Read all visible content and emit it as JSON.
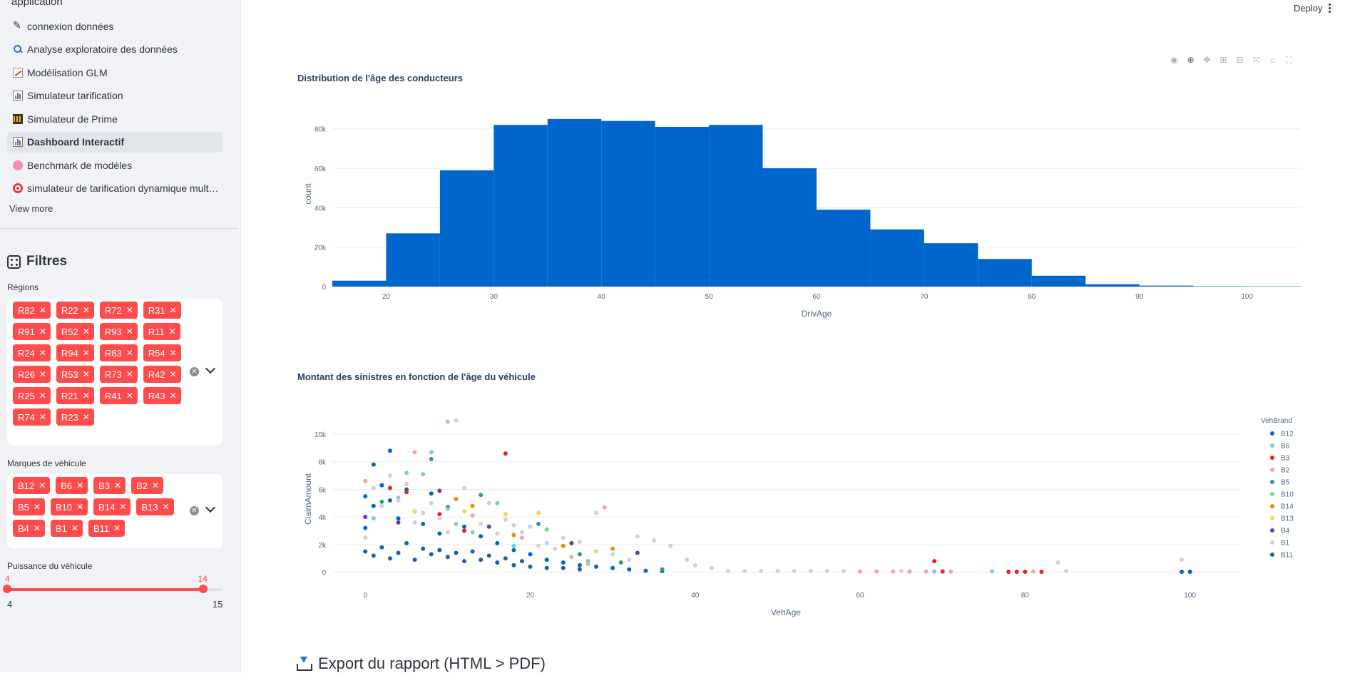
{
  "sidebar": {
    "app_name": "application",
    "nav": [
      {
        "label": "connexion données",
        "icon": "pen-icon"
      },
      {
        "label": "Analyse exploratoire des données",
        "icon": "magnifier-icon"
      },
      {
        "label": "Modélisation GLM",
        "icon": "trend-chart-icon"
      },
      {
        "label": "Simulateur tarification",
        "icon": "bar-chart-icon"
      },
      {
        "label": "Simulateur de Prime",
        "icon": "abacus-icon"
      },
      {
        "label": "Dashboard Interactif",
        "icon": "bar-chart-icon",
        "active": true
      },
      {
        "label": "Benchmark de modèles",
        "icon": "brain-icon"
      },
      {
        "label": "simulateur de tarification dynamique mult…",
        "icon": "target-icon"
      }
    ],
    "view_more": "View more",
    "filters": {
      "title": "Filtres",
      "regions": {
        "label": "Régions",
        "selected": [
          "R82",
          "R22",
          "R72",
          "R31",
          "R91",
          "R52",
          "R93",
          "R11",
          "R24",
          "R94",
          "R83",
          "R54",
          "R26",
          "R53",
          "R73",
          "R42",
          "R25",
          "R21",
          "R41",
          "R43",
          "R74",
          "R23"
        ]
      },
      "brands": {
        "label": "Marques de véhicule",
        "selected": [
          "B12",
          "B6",
          "B3",
          "B2",
          "B5",
          "B10",
          "B14",
          "B13",
          "B4",
          "B1",
          "B11"
        ]
      },
      "power": {
        "label": "Puissance du véhicule",
        "min": 4,
        "max": 15,
        "value_low": 4,
        "value_high": 14,
        "low_label": "4",
        "high_label": "14",
        "min_label": "4",
        "max_label": "15"
      }
    },
    "accent_color": "#ff4b4b"
  },
  "header": {
    "deploy_label": "Deploy"
  },
  "charts": {
    "histogram_title": "Distribution de l'âge des conducteurs",
    "scatter_title": "Montant des sinistres en fonction de l'âge du véhicule"
  },
  "export": {
    "title": "Export du rapport (HTML > PDF)"
  },
  "chart_data": [
    {
      "type": "bar",
      "title": "Distribution de l'âge des conducteurs",
      "xlabel": "DrivAge",
      "ylabel": "count",
      "bin_width": 5,
      "bin_starts": [
        15,
        20,
        25,
        30,
        35,
        40,
        45,
        50,
        55,
        60,
        65,
        70,
        75,
        80,
        85,
        90,
        95,
        100
      ],
      "values": [
        3000,
        27000,
        59000,
        82000,
        85000,
        84000,
        81000,
        82000,
        60000,
        39000,
        29000,
        22000,
        14000,
        5500,
        1200,
        500,
        200,
        150
      ],
      "xlim": [
        15,
        105
      ],
      "ylim": [
        0,
        94000
      ],
      "xticks": [
        20,
        30,
        40,
        50,
        60,
        70,
        80,
        90,
        100
      ],
      "yticks": [
        0,
        20000,
        40000,
        60000,
        80000
      ],
      "ytick_labels": [
        "0",
        "20k",
        "40k",
        "60k",
        "80k"
      ],
      "color": "#0066cc"
    },
    {
      "type": "scatter",
      "title": "Montant des sinistres en fonction de l'âge du véhicule",
      "xlabel": "VehAge",
      "ylabel": "ClaimAmount",
      "xlim": [
        -4,
        106
      ],
      "ylim": [
        -900,
        11500
      ],
      "xticks": [
        0,
        20,
        40,
        60,
        80,
        100
      ],
      "yticks": [
        0,
        2000,
        4000,
        6000,
        8000,
        10000
      ],
      "ytick_labels": [
        "0",
        "2k",
        "4k",
        "6k",
        "8k",
        "10k"
      ],
      "legend_title": "VehBrand",
      "legend_position": "right",
      "series": [
        {
          "name": "B12",
          "color": "#0066cc",
          "points": [
            [
              0,
              3200
            ],
            [
              0,
              5500
            ],
            [
              1,
              7800
            ],
            [
              1,
              4800
            ],
            [
              2,
              6300
            ],
            [
              3,
              8800
            ],
            [
              3,
              5200
            ],
            [
              4,
              3900
            ],
            [
              5,
              6000
            ],
            [
              6,
              4400
            ],
            [
              7,
              3500
            ],
            [
              8,
              5700
            ],
            [
              9,
              2800
            ],
            [
              10,
              4700
            ],
            [
              12,
              3300
            ],
            [
              14,
              2600
            ],
            [
              16,
              2100
            ],
            [
              18,
              1600
            ],
            [
              20,
              1300
            ],
            [
              22,
              900
            ],
            [
              24,
              700
            ],
            [
              26,
              500
            ],
            [
              28,
              400
            ],
            [
              30,
              300
            ],
            [
              32,
              200
            ],
            [
              34,
              100
            ],
            [
              36,
              80
            ],
            [
              99,
              30
            ],
            [
              100,
              30
            ]
          ]
        },
        {
          "name": "B6",
          "color": "#7ec8e3",
          "points": [
            [
              1,
              3900
            ],
            [
              4,
              5400
            ],
            [
              8,
              8700
            ],
            [
              11,
              3500
            ],
            [
              13,
              2900
            ],
            [
              18,
              1900
            ],
            [
              76,
              60
            ],
            [
              69,
              50
            ]
          ]
        },
        {
          "name": "B3",
          "color": "#e02424",
          "points": [
            [
              3,
              6100
            ],
            [
              5,
              5800
            ],
            [
              9,
              4200
            ],
            [
              17,
              8600
            ],
            [
              12,
              3000
            ],
            [
              69,
              800
            ],
            [
              70,
              50
            ],
            [
              78,
              30
            ],
            [
              79,
              30
            ],
            [
              80,
              30
            ],
            [
              82,
              30
            ]
          ]
        },
        {
          "name": "B2",
          "color": "#f4a6a6",
          "points": [
            [
              0,
              6600
            ],
            [
              6,
              8700
            ],
            [
              10,
              10900
            ],
            [
              13,
              4100
            ],
            [
              19,
              2500
            ],
            [
              29,
              4700
            ],
            [
              25,
              1100
            ],
            [
              27,
              600
            ],
            [
              60,
              50
            ],
            [
              62,
              50
            ],
            [
              64,
              50
            ],
            [
              66,
              50
            ],
            [
              68,
              50
            ],
            [
              71,
              50
            ],
            [
              81,
              50
            ]
          ]
        },
        {
          "name": "B5",
          "color": "#2a9d8f",
          "points": [
            [
              2,
              5100
            ],
            [
              8,
              8200
            ],
            [
              14,
              5600
            ],
            [
              21,
              3500
            ],
            [
              26,
              1300
            ],
            [
              31,
              700
            ],
            [
              36,
              200
            ]
          ]
        },
        {
          "name": "B10",
          "color": "#7bd88f",
          "points": [
            [
              5,
              7200
            ],
            [
              7,
              7100
            ],
            [
              10,
              4600
            ],
            [
              16,
              5000
            ],
            [
              22,
              3100
            ],
            [
              27,
              800
            ]
          ]
        },
        {
          "name": "B14",
          "color": "#f08c00",
          "points": [
            [
              11,
              5300
            ],
            [
              13,
              4800
            ],
            [
              18,
              2700
            ],
            [
              24,
              1900
            ],
            [
              30,
              1700
            ]
          ]
        },
        {
          "name": "B13",
          "color": "#f4d35e",
          "points": [
            [
              6,
              4400
            ],
            [
              12,
              4400
            ],
            [
              17,
              4200
            ],
            [
              21,
              4300
            ],
            [
              28,
              1500
            ]
          ]
        },
        {
          "name": "B4",
          "color": "#6a3d9a",
          "points": [
            [
              0,
              4000
            ],
            [
              4,
              3600
            ],
            [
              9,
              5900
            ],
            [
              15,
              3300
            ],
            [
              25,
              2100
            ],
            [
              33,
              1400
            ]
          ]
        },
        {
          "name": "B1",
          "color": "#cfcfe0",
          "points": [
            [
              0,
              2500
            ],
            [
              1,
              6100
            ],
            [
              2,
              4800
            ],
            [
              3,
              7000
            ],
            [
              4,
              5200
            ],
            [
              5,
              6400
            ],
            [
              6,
              3600
            ],
            [
              7,
              4300
            ],
            [
              8,
              5000
            ],
            [
              9,
              3900
            ],
            [
              10,
              2900
            ],
            [
              11,
              11000
            ],
            [
              12,
              6100
            ],
            [
              14,
              3500
            ],
            [
              15,
              5000
            ],
            [
              16,
              2800
            ],
            [
              17,
              3800
            ],
            [
              18,
              3400
            ],
            [
              19,
              2900
            ],
            [
              20,
              3300
            ],
            [
              21,
              1900
            ],
            [
              22,
              2100
            ],
            [
              23,
              1700
            ],
            [
              24,
              2500
            ],
            [
              26,
              2200
            ],
            [
              28,
              4300
            ],
            [
              30,
              1300
            ],
            [
              32,
              900
            ],
            [
              33,
              2600
            ],
            [
              35,
              2300
            ],
            [
              37,
              1900
            ],
            [
              39,
              900
            ],
            [
              40,
              500
            ],
            [
              42,
              300
            ],
            [
              44,
              80
            ],
            [
              46,
              80
            ],
            [
              48,
              80
            ],
            [
              50,
              80
            ],
            [
              52,
              80
            ],
            [
              54,
              80
            ],
            [
              56,
              80
            ],
            [
              58,
              80
            ],
            [
              65,
              80
            ],
            [
              84,
              700
            ],
            [
              85,
              80
            ],
            [
              99,
              900
            ]
          ]
        },
        {
          "name": "B11",
          "color": "#1f5fa8",
          "points": [
            [
              0,
              1500
            ],
            [
              1,
              1200
            ],
            [
              2,
              1800
            ],
            [
              3,
              1000
            ],
            [
              4,
              1400
            ],
            [
              5,
              2100
            ],
            [
              6,
              900
            ],
            [
              7,
              1700
            ],
            [
              8,
              1300
            ],
            [
              9,
              1600
            ],
            [
              10,
              1100
            ],
            [
              11,
              1400
            ],
            [
              12,
              800
            ],
            [
              13,
              1500
            ],
            [
              14,
              900
            ],
            [
              15,
              1200
            ],
            [
              16,
              700
            ],
            [
              17,
              1000
            ],
            [
              18,
              500
            ],
            [
              19,
              800
            ],
            [
              20,
              400
            ],
            [
              22,
              300
            ],
            [
              24,
              300
            ],
            [
              26,
              200
            ]
          ]
        }
      ]
    }
  ]
}
